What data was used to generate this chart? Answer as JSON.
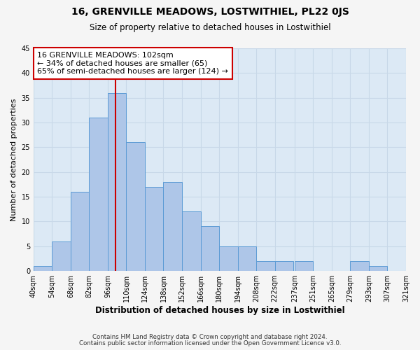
{
  "title": "16, GRENVILLE MEADOWS, LOSTWITHIEL, PL22 0JS",
  "subtitle": "Size of property relative to detached houses in Lostwithiel",
  "xlabel": "Distribution of detached houses by size in Lostwithiel",
  "ylabel": "Number of detached properties",
  "bin_edges": [
    40,
    54,
    68,
    82,
    96,
    110,
    124,
    138,
    152,
    166,
    180,
    194,
    208,
    222,
    237,
    251,
    265,
    279,
    293,
    307,
    321
  ],
  "bin_labels": [
    "40sqm",
    "54sqm",
    "68sqm",
    "82sqm",
    "96sqm",
    "110sqm",
    "124sqm",
    "138sqm",
    "152sqm",
    "166sqm",
    "180sqm",
    "194sqm",
    "208sqm",
    "222sqm",
    "237sqm",
    "251sqm",
    "265sqm",
    "279sqm",
    "293sqm",
    "307sqm",
    "321sqm"
  ],
  "counts": [
    1,
    6,
    16,
    31,
    36,
    26,
    17,
    18,
    12,
    9,
    5,
    5,
    2,
    2,
    2,
    0,
    0,
    2,
    1,
    0
  ],
  "bar_color": "#aec6e8",
  "bar_edge_color": "#5b9bd5",
  "property_value": 102,
  "vline_color": "#cc0000",
  "annotation_line1": "16 GRENVILLE MEADOWS: 102sqm",
  "annotation_line2": "← 34% of detached houses are smaller (65)",
  "annotation_line3": "65% of semi-detached houses are larger (124) →",
  "annotation_box_color": "#ffffff",
  "annotation_box_edge": "#cc0000",
  "ylim": [
    0,
    45
  ],
  "yticks": [
    0,
    5,
    10,
    15,
    20,
    25,
    30,
    35,
    40,
    45
  ],
  "grid_color": "#c8d8e8",
  "background_color": "#dce9f5",
  "fig_background": "#f5f5f5",
  "footer_line1": "Contains HM Land Registry data © Crown copyright and database right 2024.",
  "footer_line2": "Contains public sector information licensed under the Open Government Licence v3.0."
}
